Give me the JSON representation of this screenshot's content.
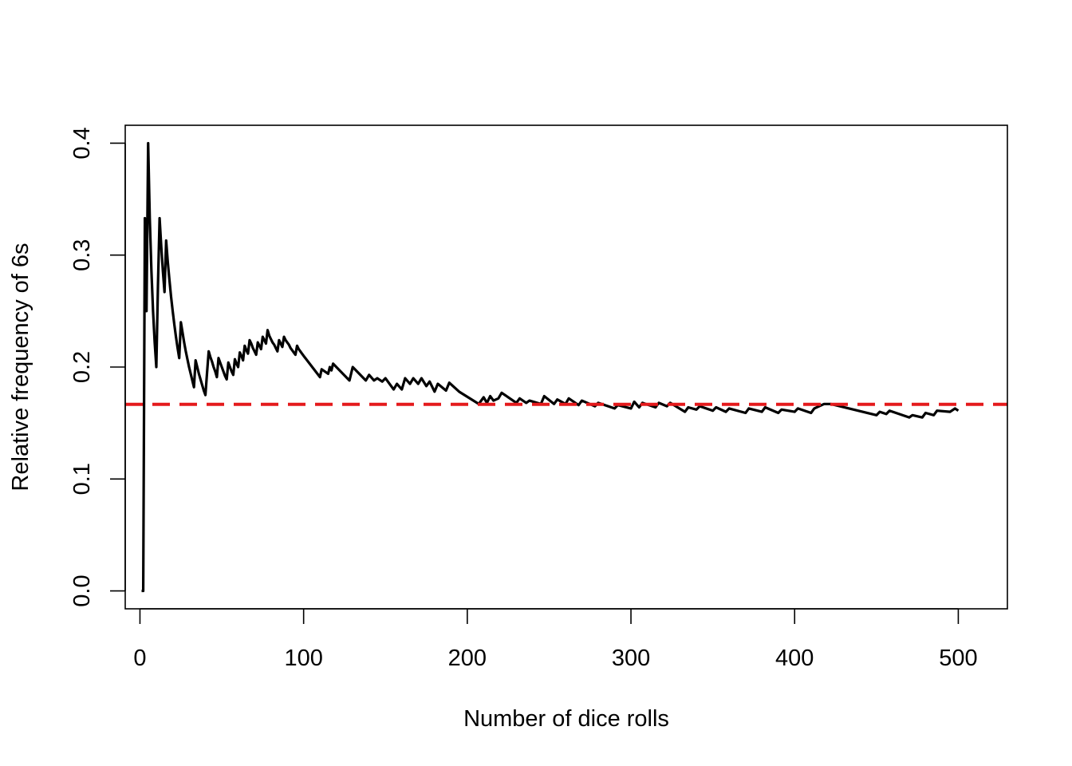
{
  "chart_data": {
    "type": "line",
    "title": "",
    "xlabel": "Number of dice rolls",
    "ylabel": "Relative frequency of 6s",
    "xlim": [
      -9,
      530
    ],
    "ylim": [
      -0.016,
      0.416
    ],
    "xticks": [
      0,
      100,
      200,
      300,
      400,
      500
    ],
    "xtick_labels": [
      "0",
      "100",
      "200",
      "300",
      "400",
      "500"
    ],
    "yticks": [
      0.0,
      0.1,
      0.2,
      0.3,
      0.4
    ],
    "ytick_labels": [
      "0.0",
      "0.1",
      "0.2",
      "0.3",
      "0.4"
    ],
    "grid": false,
    "series": [
      {
        "color": "#000000",
        "style": "solid",
        "x": [
          1,
          2,
          3,
          4,
          5,
          6,
          7,
          8,
          9,
          10,
          11,
          12,
          13,
          14,
          15,
          16,
          17,
          18,
          19,
          20,
          21,
          22,
          23,
          24,
          25,
          26,
          27,
          28,
          29,
          30,
          31,
          32,
          33,
          34,
          35,
          36,
          37,
          38,
          39,
          40,
          41,
          42,
          43,
          44,
          45,
          46,
          47,
          48,
          49,
          50,
          51,
          52,
          53,
          54,
          55,
          56,
          57,
          58,
          59,
          60,
          61,
          62,
          63,
          64,
          65,
          66,
          67,
          68,
          69,
          70,
          71,
          72,
          73,
          74,
          75,
          76,
          77,
          78,
          79,
          80,
          81,
          82,
          83,
          84,
          85,
          86,
          87,
          88,
          89,
          90,
          91,
          92,
          93,
          94,
          95,
          96,
          97,
          98,
          99,
          100,
          110,
          111,
          115,
          116,
          117,
          118,
          120,
          128,
          130,
          138,
          140,
          143,
          145,
          148,
          150,
          155,
          157,
          160,
          162,
          165,
          167,
          170,
          172,
          175,
          177,
          180,
          182,
          187,
          189,
          195,
          207,
          210,
          212,
          214,
          216,
          219,
          221,
          230,
          232,
          236,
          238,
          245,
          247,
          253,
          255,
          260,
          262,
          268,
          270,
          278,
          280,
          290,
          292,
          300,
          302,
          305,
          307,
          315,
          317,
          322,
          324,
          333,
          335,
          340,
          342,
          350,
          352,
          358,
          360,
          370,
          372,
          380,
          382,
          390,
          392,
          400,
          402,
          410,
          412,
          418,
          422,
          450,
          452,
          456,
          458,
          470,
          472,
          478,
          480,
          485,
          487,
          495,
          498,
          500
        ],
        "y": [
          0.0,
          0.0,
          0.333,
          0.25,
          0.4,
          0.333,
          0.286,
          0.25,
          0.222,
          0.2,
          0.273,
          0.333,
          0.308,
          0.286,
          0.267,
          0.313,
          0.294,
          0.278,
          0.263,
          0.25,
          0.238,
          0.227,
          0.217,
          0.208,
          0.24,
          0.231,
          0.222,
          0.214,
          0.207,
          0.2,
          0.194,
          0.188,
          0.182,
          0.206,
          0.2,
          0.194,
          0.189,
          0.184,
          0.179,
          0.175,
          0.195,
          0.214,
          0.209,
          0.205,
          0.2,
          0.196,
          0.191,
          0.208,
          0.204,
          0.2,
          0.196,
          0.192,
          0.189,
          0.204,
          0.2,
          0.196,
          0.193,
          0.207,
          0.203,
          0.2,
          0.213,
          0.21,
          0.206,
          0.219,
          0.215,
          0.212,
          0.224,
          0.221,
          0.217,
          0.214,
          0.211,
          0.222,
          0.219,
          0.216,
          0.227,
          0.224,
          0.221,
          0.233,
          0.228,
          0.225,
          0.222,
          0.22,
          0.217,
          0.214,
          0.224,
          0.221,
          0.218,
          0.227,
          0.224,
          0.222,
          0.22,
          0.217,
          0.215,
          0.213,
          0.211,
          0.219,
          0.216,
          0.214,
          0.212,
          0.21,
          0.191,
          0.198,
          0.194,
          0.2,
          0.197,
          0.203,
          0.2,
          0.188,
          0.2,
          0.188,
          0.193,
          0.188,
          0.19,
          0.187,
          0.19,
          0.18,
          0.185,
          0.18,
          0.19,
          0.185,
          0.19,
          0.185,
          0.19,
          0.183,
          0.187,
          0.178,
          0.185,
          0.179,
          0.186,
          0.178,
          0.167,
          0.173,
          0.168,
          0.174,
          0.17,
          0.172,
          0.177,
          0.168,
          0.172,
          0.168,
          0.17,
          0.167,
          0.174,
          0.167,
          0.171,
          0.167,
          0.172,
          0.166,
          0.17,
          0.165,
          0.168,
          0.163,
          0.166,
          0.163,
          0.169,
          0.164,
          0.168,
          0.164,
          0.168,
          0.165,
          0.168,
          0.16,
          0.164,
          0.162,
          0.165,
          0.161,
          0.164,
          0.16,
          0.163,
          0.159,
          0.163,
          0.16,
          0.164,
          0.159,
          0.162,
          0.16,
          0.163,
          0.159,
          0.163,
          0.167,
          0.167,
          0.157,
          0.16,
          0.158,
          0.161,
          0.155,
          0.157,
          0.155,
          0.159,
          0.157,
          0.161,
          0.16,
          0.163,
          0.161
        ]
      },
      {
        "color": "#e41a1c",
        "style": "dashed",
        "x": [
          -9,
          530
        ],
        "y": [
          0.1667,
          0.1667
        ]
      }
    ]
  }
}
